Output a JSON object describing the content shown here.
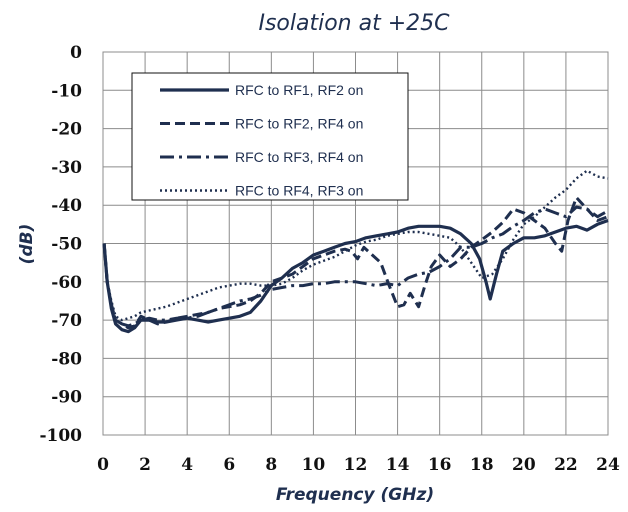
{
  "chart_data": {
    "type": "line",
    "title": "Isolation at +25C",
    "xlabel": "Frequency (GHz)",
    "ylabel": "(dB)",
    "xlim": [
      0,
      24
    ],
    "ylim": [
      -100,
      0
    ],
    "xticks": [
      "0",
      "2",
      "4",
      "6",
      "8",
      "10",
      "12",
      "14",
      "16",
      "18",
      "20",
      "22",
      "24"
    ],
    "yticks": [
      "0",
      "-10",
      "-20",
      "-30",
      "-40",
      "-50",
      "-60",
      "-70",
      "-80",
      "-90",
      "-100"
    ],
    "grid": true,
    "legend_position": "top-left",
    "line_color": "#1f2f4f",
    "series": [
      {
        "name": "RFC to RF1, RF2 on",
        "style": "solid",
        "x": [
          0.05,
          0.2,
          0.4,
          0.6,
          0.9,
          1.2,
          1.5,
          1.8,
          2.2,
          2.6,
          3,
          3.5,
          4,
          4.5,
          5,
          5.5,
          6,
          6.5,
          7,
          7.5,
          8,
          8.5,
          9,
          9.5,
          10,
          10.5,
          11,
          11.5,
          12,
          12.5,
          13,
          13.5,
          14,
          14.5,
          15,
          15.5,
          16,
          16.5,
          17,
          17.5,
          17.9,
          18.2,
          18.4,
          18.7,
          19,
          19.5,
          20,
          20.5,
          21,
          21.5,
          22,
          22.5,
          23,
          23.5,
          24
        ],
        "values": [
          -50,
          -60,
          -67,
          -71,
          -72.5,
          -73,
          -72,
          -70,
          -70,
          -70.5,
          -70.5,
          -70,
          -69.5,
          -70,
          -70.5,
          -70,
          -69.5,
          -69,
          -68,
          -65,
          -61,
          -59,
          -56.5,
          -55,
          -53,
          -52,
          -51,
          -50,
          -49.5,
          -48.5,
          -48,
          -47.5,
          -47,
          -46,
          -45.5,
          -45.5,
          -45.5,
          -46,
          -47.5,
          -50,
          -54,
          -60,
          -64.5,
          -58,
          -52,
          -50,
          -48.5,
          -48.5,
          -48,
          -47,
          -46,
          -45.5,
          -46.5,
          -45,
          -44
        ]
      },
      {
        "name": "RFC to RF2, RF4 on",
        "style": "dashed",
        "x": [
          0.05,
          0.2,
          0.4,
          0.6,
          0.9,
          1.2,
          1.5,
          1.8,
          2.2,
          2.6,
          3,
          3.5,
          4,
          4.5,
          5,
          5.5,
          6,
          6.5,
          7,
          7.5,
          8,
          8.5,
          9,
          9.5,
          10,
          10.5,
          11,
          11.5,
          11.8,
          12.1,
          12.4,
          12.8,
          13.2,
          13.6,
          14,
          14.3,
          14.6,
          15,
          15.3,
          15.6,
          16,
          16.5,
          17,
          17.5,
          18,
          18.5,
          19,
          19.5,
          20,
          20.5,
          21,
          21.5,
          21.8,
          22.1,
          22.5,
          23,
          23.5,
          24
        ],
        "values": [
          -50,
          -60,
          -66,
          -70,
          -71,
          -72,
          -71.5,
          -69,
          -70,
          -71,
          -70.5,
          -69.5,
          -69,
          -68.5,
          -68,
          -67,
          -66.5,
          -66,
          -65,
          -63,
          -60,
          -59,
          -58,
          -56,
          -54,
          -53,
          -52,
          -51.5,
          -52,
          -54,
          -51,
          -53,
          -55,
          -61,
          -66.5,
          -66,
          -63,
          -66.5,
          -61,
          -56,
          -53,
          -56,
          -54,
          -51,
          -49,
          -47,
          -44.5,
          -41,
          -42,
          -44,
          -46,
          -50,
          -52,
          -44,
          -38,
          -41,
          -44,
          -43
        ]
      },
      {
        "name": "RFC to RF3, RF4 on",
        "style": "dashdot",
        "x": [
          0.05,
          0.2,
          0.4,
          0.6,
          0.9,
          1.2,
          1.5,
          1.8,
          2.2,
          2.6,
          3,
          3.5,
          4,
          4.5,
          5,
          5.5,
          6,
          6.5,
          7,
          7.5,
          8,
          8.5,
          9,
          9.5,
          10,
          10.5,
          11,
          11.5,
          12,
          12.5,
          13,
          13.5,
          14,
          14.5,
          15,
          15.5,
          16,
          16.5,
          17,
          17.5,
          18,
          18.5,
          19,
          19.5,
          20,
          20.5,
          21,
          21.5,
          22,
          22.5,
          23,
          23.5,
          24
        ],
        "values": [
          -50,
          -60,
          -66,
          -70,
          -71,
          -71.5,
          -71,
          -70,
          -69.5,
          -70,
          -70,
          -69.5,
          -69.5,
          -69,
          -68,
          -67,
          -66,
          -65,
          -64.5,
          -63.5,
          -62,
          -61.5,
          -61,
          -61,
          -60.5,
          -60.5,
          -60,
          -60,
          -60,
          -60.5,
          -61,
          -60.5,
          -61,
          -59,
          -58,
          -57.5,
          -56,
          -54,
          -51,
          -51,
          -50,
          -48.5,
          -47.5,
          -45.5,
          -44,
          -42,
          -41,
          -42,
          -43,
          -40.5,
          -41,
          -43,
          -41.5
        ]
      },
      {
        "name": "RFC to RF4, RF3 on",
        "style": "dotted",
        "x": [
          0.05,
          0.2,
          0.4,
          0.6,
          0.9,
          1.2,
          1.5,
          1.8,
          2.2,
          2.6,
          3,
          3.5,
          4,
          4.5,
          5,
          5.5,
          6,
          6.5,
          7,
          7.5,
          8,
          8.5,
          9,
          9.5,
          10,
          10.5,
          11,
          11.5,
          12,
          12.5,
          13,
          13.5,
          14,
          14.5,
          15,
          15.5,
          16,
          16.5,
          17,
          17.5,
          18,
          18.5,
          19,
          19.5,
          20,
          20.5,
          21,
          21.5,
          22,
          22.5,
          23,
          23.5,
          24
        ],
        "values": [
          -50,
          -60,
          -65,
          -69,
          -70,
          -69.5,
          -69,
          -68,
          -67.5,
          -67,
          -66.5,
          -65.5,
          -64.5,
          -63.5,
          -62.5,
          -61.5,
          -61,
          -60.5,
          -60.5,
          -61,
          -61,
          -60.5,
          -59,
          -57,
          -55.5,
          -54.5,
          -53.5,
          -52,
          -50.5,
          -49.5,
          -49,
          -48,
          -47.5,
          -47,
          -47,
          -47.5,
          -48,
          -48.5,
          -51,
          -55,
          -59,
          -58,
          -54,
          -49,
          -45,
          -43,
          -40.5,
          -38,
          -36,
          -33,
          -31,
          -32.5,
          -33
        ]
      }
    ]
  }
}
